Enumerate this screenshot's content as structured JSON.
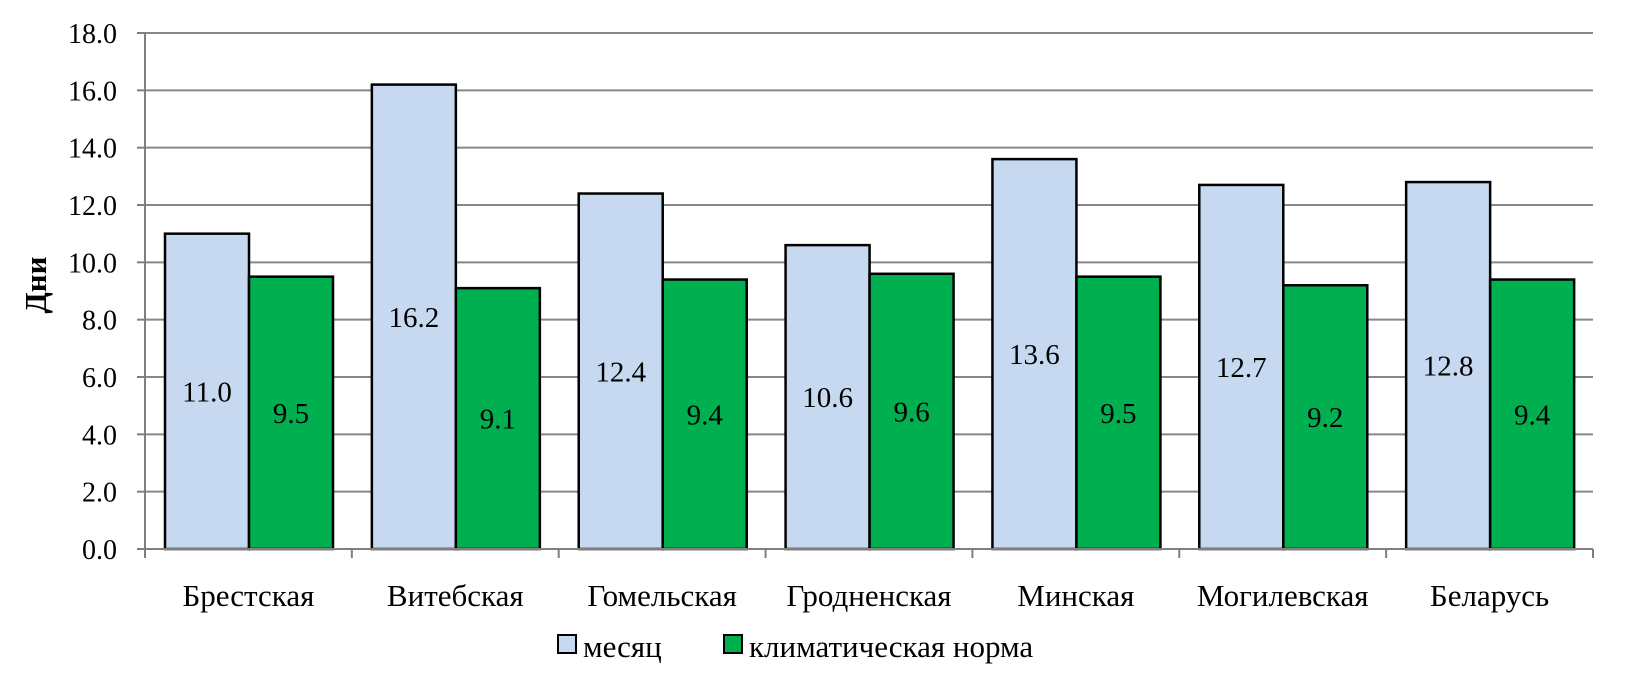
{
  "chart_data": {
    "type": "bar",
    "categories": [
      "Брестская",
      "Витебская",
      "Гомельская",
      "Гродненская",
      "Минская",
      "Могилевская",
      "Беларусь"
    ],
    "series": [
      {
        "name": "месяц",
        "values": [
          11.0,
          16.2,
          12.4,
          10.6,
          13.6,
          12.7,
          12.8
        ],
        "color": "#c6d9f1"
      },
      {
        "name": "климатическая норма",
        "values": [
          9.5,
          9.1,
          9.4,
          9.6,
          9.5,
          9.2,
          9.4
        ],
        "color": "#00b050"
      }
    ],
    "data_labels": [
      [
        "11.0",
        "16.2",
        "12.4",
        "10.6",
        "13.6",
        "12.7",
        "12.8"
      ],
      [
        "9.5",
        "9.1",
        "9.4",
        "9.6",
        "9.5",
        "9.2",
        "9.4"
      ]
    ],
    "ylabel": "Дни",
    "xlabel": "",
    "ylim": [
      0,
      18
    ],
    "ytick_labels": [
      "0.0",
      "2.0",
      "4.0",
      "6.0",
      "8.0",
      "10.0",
      "12.0",
      "14.0",
      "16.0",
      "18.0"
    ],
    "grid": true,
    "legend_position": "bottom"
  }
}
